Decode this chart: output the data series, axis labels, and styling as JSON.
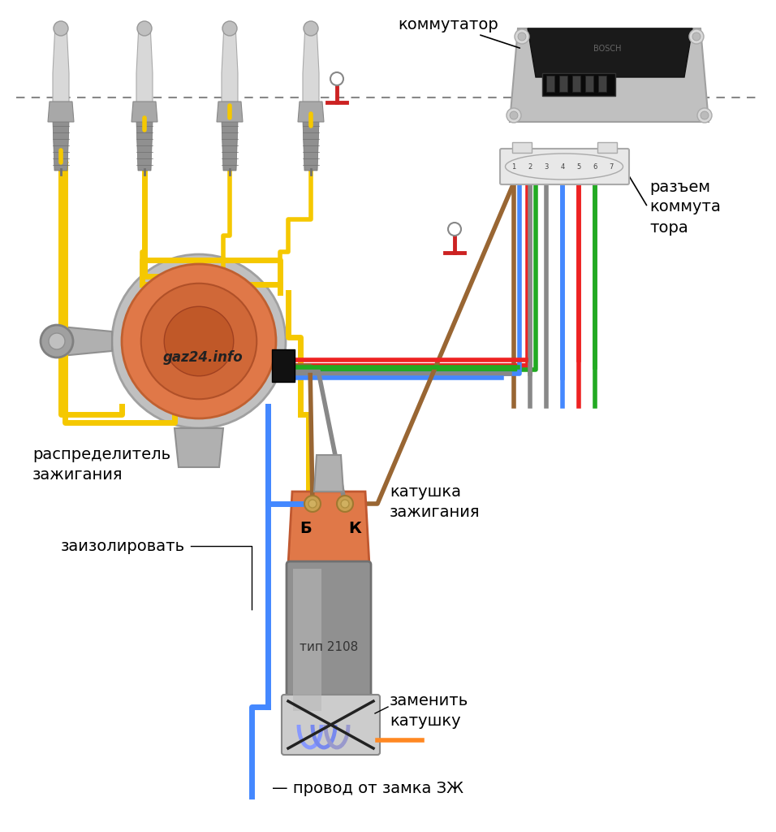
{
  "bg_color": "#ffffff",
  "labels": {
    "kommutator": "коммутатор",
    "razem": "разъем\nкоммута\nтора",
    "raspredelitel": "распределитель\nзажигания",
    "zaizolirovat": "заизолировать",
    "katushka": "катушка\nзажигания",
    "tip2108": "тип 2108",
    "zamenity": "заменить\nкатушку",
    "provod": "— провод от замка ЗЖ",
    "gaz24": "gaz24.info",
    "B_label": "Б",
    "K_label": "К"
  },
  "colors": {
    "yellow": "#F5C800",
    "blue": "#4488FF",
    "red": "#EE2222",
    "green": "#22AA22",
    "brown": "#996633",
    "gray_wire": "#888888",
    "orange_wire": "#FF8822"
  },
  "font_size": 14
}
